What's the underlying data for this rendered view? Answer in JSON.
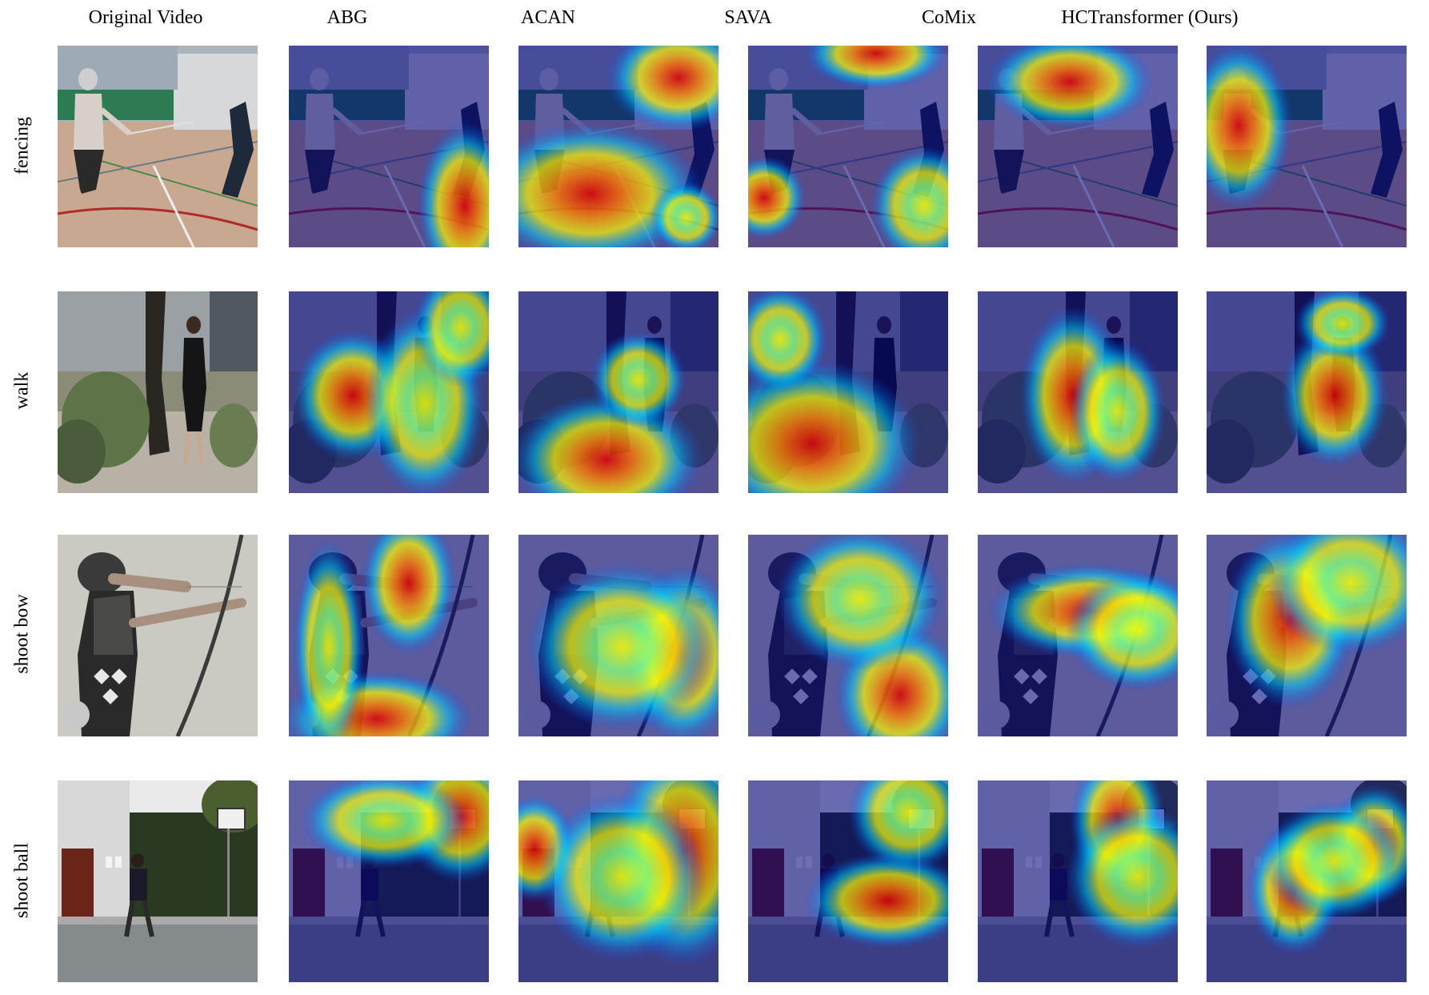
{
  "figure": {
    "columns": [
      {
        "label": "Original Video"
      },
      {
        "label": "ABG"
      },
      {
        "label": "ACAN"
      },
      {
        "label": "SAVA"
      },
      {
        "label": "CoMix"
      },
      {
        "label": "HCTransformer (Ours)"
      }
    ],
    "rows": [
      {
        "label": "fencing"
      },
      {
        "label": "walk"
      },
      {
        "label": "shoot bow"
      },
      {
        "label": "shoot ball"
      }
    ],
    "colormap": [
      "#000080",
      "#0050ff",
      "#00d0ff",
      "#80ff80",
      "#ffff00",
      "#ff8000",
      "#e00000"
    ],
    "image_content": "heat-map attention overlays on video frames"
  }
}
